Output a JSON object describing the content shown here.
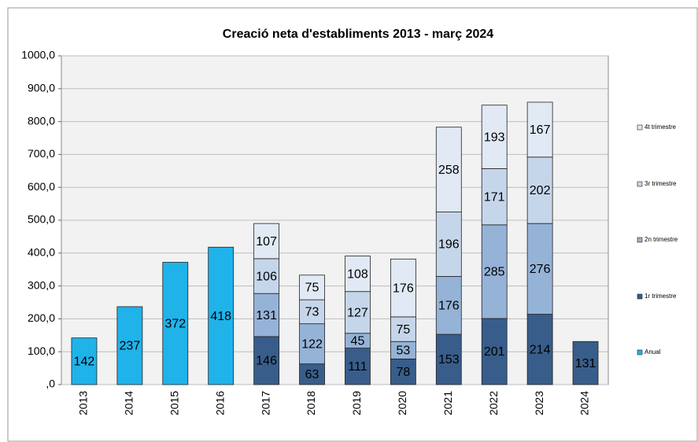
{
  "chart_data": {
    "type": "stacked_bar",
    "title": "Creació neta d'establiments 2013 - març 2024",
    "categories": [
      "2013",
      "2014",
      "2015",
      "2016",
      "2017",
      "2018",
      "2019",
      "2020",
      "2021",
      "2022",
      "2023",
      "2024"
    ],
    "series": [
      {
        "name": "Anual",
        "color": "#1fb3ea",
        "values": [
          142,
          237,
          372,
          418,
          null,
          null,
          null,
          null,
          null,
          null,
          null,
          null
        ]
      },
      {
        "name": "1r trimestre",
        "color": "#385d8a",
        "values": [
          null,
          null,
          null,
          null,
          146,
          63,
          111,
          78,
          153,
          201,
          214,
          131
        ]
      },
      {
        "name": "2n trimestre",
        "color": "#95b3d7",
        "values": [
          null,
          null,
          null,
          null,
          131,
          122,
          45,
          53,
          176,
          285,
          276,
          null
        ]
      },
      {
        "name": "3r trimestre",
        "color": "#c6d6ea",
        "values": [
          null,
          null,
          null,
          null,
          106,
          73,
          127,
          75,
          196,
          171,
          202,
          null
        ]
      },
      {
        "name": "4t trimestre",
        "color": "#e1e9f4",
        "values": [
          null,
          null,
          null,
          null,
          107,
          75,
          108,
          176,
          258,
          193,
          167,
          null
        ]
      }
    ],
    "ylim": [
      0,
      1000
    ],
    "yticks": [
      {
        "value": 0,
        "label": ",0"
      },
      {
        "value": 100,
        "label": "100,0"
      },
      {
        "value": 200,
        "label": "200,0"
      },
      {
        "value": 300,
        "label": "300,0"
      },
      {
        "value": 400,
        "label": "400,0"
      },
      {
        "value": 500,
        "label": "500,0"
      },
      {
        "value": 600,
        "label": "600,0"
      },
      {
        "value": 700,
        "label": "700,0"
      },
      {
        "value": 800,
        "label": "800,0"
      },
      {
        "value": 900,
        "label": "900,0"
      },
      {
        "value": 1000,
        "label": "1000,0"
      }
    ],
    "grid": true,
    "legend": "right"
  }
}
